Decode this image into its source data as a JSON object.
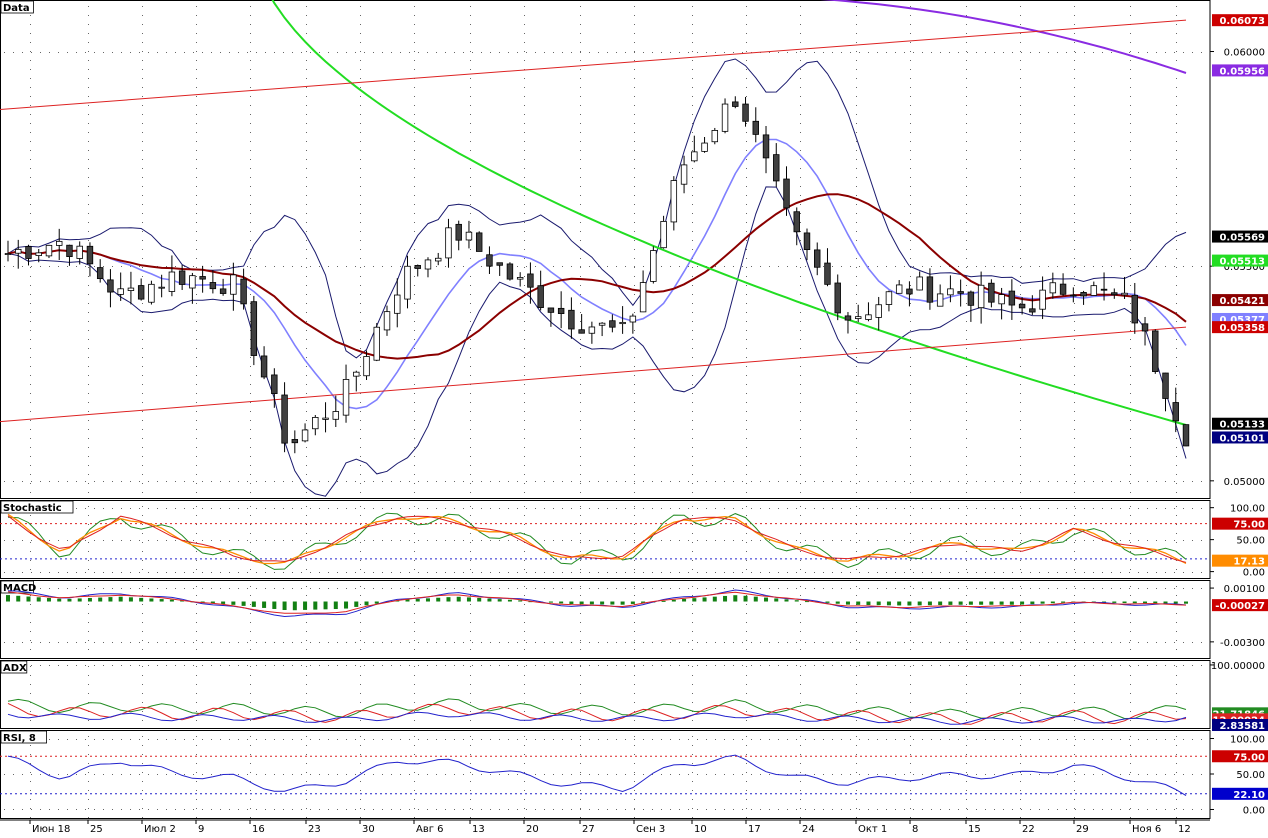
{
  "colors": {
    "bg": "#ffffff",
    "grid": "#000000",
    "bull_candle": "#ffffff",
    "bear_candle": "#404040",
    "bb_outer": "#1a1a6e",
    "bb_middle": "#8080ff",
    "ma_short": "#8b0000",
    "ma_medium": "#22dd22",
    "ma_long": "#8a2be2",
    "channel": "#dd2222",
    "stoch_k": "#228b22",
    "stoch_d": "#ff8c00",
    "stoch_slow": "#dd2222",
    "macd_hist": "#138013",
    "macd_line": "#2222cc",
    "macd_signal": "#dd2222",
    "adx_main": "#2222cc",
    "adx_plus": "#228b22",
    "adx_minus": "#dd2222",
    "rsi_line": "#2222cc"
  },
  "x_axis": {
    "labels": [
      "Июн 18",
      "25",
      "Июл 2",
      "9",
      "16",
      "23",
      "30",
      "Авг 6",
      "13",
      "20",
      "27",
      "Сен 3",
      "10",
      "17",
      "24",
      "Окт 1",
      "8",
      "15",
      "22",
      "29",
      "Ноя 6",
      "12"
    ]
  },
  "panels": {
    "price": {
      "title": "Data",
      "tick_labels": [
        "0.06000",
        "0.05500",
        "0.05000"
      ],
      "ticks": [
        0.06,
        0.055,
        0.05
      ],
      "badges": [
        {
          "text": "0.06073",
          "value": 0.06073,
          "bg": "#cc0000",
          "fg": "#ffffff"
        },
        {
          "text": "0.05956",
          "value": 0.05956,
          "bg": "#8a2be2",
          "fg": "#ffffff"
        },
        {
          "text": "0.05569",
          "value": 0.05569,
          "bg": "#000000",
          "fg": "#ffffff"
        },
        {
          "text": "0.05513",
          "value": 0.05513,
          "bg": "#22dd22",
          "fg": "#ffffff"
        },
        {
          "text": "0.05421",
          "value": 0.05421,
          "bg": "#8b0000",
          "fg": "#ffffff"
        },
        {
          "text": "0.05377",
          "value": 0.05377,
          "bg": "#8080ff",
          "fg": "#ffffff"
        },
        {
          "text": "0.05358",
          "value": 0.05358,
          "bg": "#cc0000",
          "fg": "#ffffff"
        },
        {
          "text": "0.05133",
          "value": 0.05133,
          "bg": "#000000",
          "fg": "#ffffff"
        },
        {
          "text": "0.05101",
          "value": 0.05101,
          "bg": "#000080",
          "fg": "#ffffff"
        }
      ]
    },
    "stochastic": {
      "title": "Stochastic",
      "tick_labels": [
        "100.00",
        "50.00",
        "0.00"
      ],
      "ticks": [
        100,
        50,
        0
      ],
      "levels": [
        75,
        20
      ],
      "badges": [
        {
          "text": "75.00",
          "value": 75,
          "bg": "#cc0000",
          "fg": "#ffffff"
        },
        {
          "text": "17.13",
          "value": 17.13,
          "bg": "#ff8c00",
          "fg": "#ffffff"
        }
      ]
    },
    "macd": {
      "title": "MACD",
      "tick_labels": [
        "0.00100",
        "-0.00300"
      ],
      "ticks": [
        0.001,
        -0.003
      ],
      "badges": [
        {
          "text": "-0.00027",
          "value": -0.00027,
          "bg": "#cc0000",
          "fg": "#ffffff"
        }
      ]
    },
    "adx": {
      "title": "ADX",
      "tick_labels": [
        "100.00000"
      ],
      "ticks": [
        100
      ],
      "badges": [
        {
          "text": "21.71846",
          "value": 21.71846,
          "bg": "#228b22",
          "fg": "#ffffff"
        },
        {
          "text": "12.00024",
          "value": 12.00024,
          "bg": "#dd2222",
          "fg": "#ffffff"
        },
        {
          "text": "2.83581",
          "value": 2.83581,
          "bg": "#000080",
          "fg": "#ffffff"
        }
      ]
    },
    "rsi": {
      "title": "RSI, 8",
      "tick_labels": [
        "100.00",
        "50.00",
        "0.00"
      ],
      "ticks": [
        100,
        50,
        0
      ],
      "levels": [
        75,
        22.1
      ],
      "badges": [
        {
          "text": "75.00",
          "value": 75,
          "bg": "#cc0000",
          "fg": "#ffffff"
        },
        {
          "text": "22.10",
          "value": 22.1,
          "bg": "#0000cc",
          "fg": "#ffffff"
        }
      ]
    }
  },
  "chart_data": {
    "type": "candlestick",
    "x": [
      "Июн 18",
      "25",
      "Июл 2",
      "9",
      "16",
      "23",
      "30",
      "Авг 6",
      "13",
      "20",
      "27",
      "Сен 3",
      "10",
      "17",
      "24",
      "Окт 1",
      "8",
      "15",
      "22",
      "29",
      "Ноя 6",
      "12"
    ],
    "series": [
      {
        "name": "Data",
        "values": [
          0.0553,
          0.0556,
          0.0543,
          0.0548,
          0.0546,
          0.0508,
          0.052,
          0.0547,
          0.0558,
          0.0547,
          0.0538,
          0.0534,
          0.0573,
          0.059,
          0.0557,
          0.0538,
          0.0545,
          0.0544,
          0.054,
          0.0546,
          0.0541,
          0.0511
        ]
      },
      {
        "name": "Stochastic",
        "values": [
          85,
          30,
          88,
          55,
          25,
          12,
          55,
          88,
          78,
          55,
          20,
          25,
          85,
          80,
          35,
          18,
          28,
          45,
          30,
          65,
          40,
          17.13
        ]
      },
      {
        "name": "MACD",
        "values": [
          0.0008,
          0.0003,
          0.0006,
          0.0002,
          -0.0004,
          -0.0011,
          -0.0009,
          0.0002,
          0.0006,
          0.0002,
          -0.0003,
          -0.0004,
          0.0003,
          0.0008,
          0.0002,
          -0.0004,
          -0.0005,
          -0.0004,
          -0.0004,
          -0.0001,
          -0.0002,
          -0.00027
        ]
      },
      {
        "name": "ADX",
        "values": [
          30,
          22,
          25,
          20,
          22,
          18,
          15,
          25,
          30,
          22,
          20,
          18,
          22,
          28,
          20,
          18,
          15,
          12,
          15,
          18,
          12,
          21.71846
        ]
      },
      {
        "name": "RSI, 8",
        "values": [
          72,
          45,
          70,
          50,
          45,
          25,
          40,
          70,
          65,
          50,
          35,
          30,
          65,
          72,
          45,
          38,
          45,
          48,
          48,
          62,
          45,
          22.1
        ]
      }
    ]
  }
}
